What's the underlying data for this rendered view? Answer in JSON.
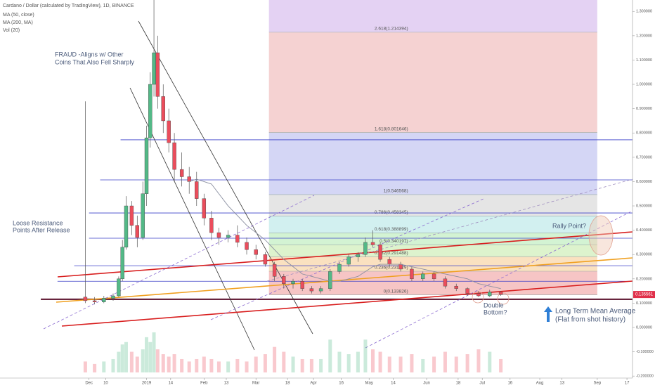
{
  "chart_data": {
    "type": "candlestick",
    "title": "Cardano / Dollar (calculated by TradingView), 1D, BINANCE",
    "indicators": [
      "MA (50, close)",
      "MA (200, MA)",
      "Vol (20)"
    ],
    "x": [
      -2,
      3,
      8,
      13,
      16,
      18,
      20,
      23,
      26,
      29,
      31,
      33,
      35,
      37,
      40,
      43,
      46,
      50,
      54,
      58,
      62,
      66,
      70,
      75,
      80,
      85,
      90,
      95,
      100,
      105,
      110,
      115,
      120,
      125,
      130,
      135,
      140,
      145,
      149,
      153,
      157,
      162,
      168,
      174,
      180,
      186,
      192,
      198,
      204,
      210,
      216,
      222
    ],
    "open": [
      0.125,
      0.11,
      0.105,
      0.12,
      0.13,
      0.2,
      0.33,
      0.5,
      0.42,
      0.37,
      0.55,
      0.78,
      1.0,
      1.13,
      0.95,
      0.85,
      0.76,
      0.65,
      0.62,
      0.6,
      0.53,
      0.45,
      0.39,
      0.37,
      0.38,
      0.35,
      0.32,
      0.3,
      0.26,
      0.21,
      0.18,
      0.19,
      0.16,
      0.15,
      0.16,
      0.23,
      0.26,
      0.29,
      0.3,
      0.35,
      0.34,
      0.28,
      0.26,
      0.24,
      0.2,
      0.22,
      0.2,
      0.17,
      0.16,
      0.14,
      0.13,
      0.145
    ],
    "high": [
      0.93,
      0.125,
      0.13,
      0.14,
      0.21,
      0.36,
      0.54,
      0.52,
      0.46,
      0.6,
      0.83,
      1.05,
      1.35,
      1.2,
      1.0,
      0.9,
      0.8,
      0.72,
      0.66,
      0.64,
      0.55,
      0.48,
      0.41,
      0.4,
      0.42,
      0.37,
      0.34,
      0.31,
      0.27,
      0.22,
      0.2,
      0.2,
      0.17,
      0.17,
      0.24,
      0.27,
      0.3,
      0.31,
      0.37,
      0.4,
      0.35,
      0.29,
      0.27,
      0.25,
      0.23,
      0.23,
      0.21,
      0.18,
      0.165,
      0.15,
      0.155,
      0.15
    ],
    "low": [
      0.1,
      0.095,
      0.1,
      0.11,
      0.125,
      0.19,
      0.32,
      0.38,
      0.33,
      0.36,
      0.5,
      0.74,
      0.95,
      0.9,
      0.8,
      0.72,
      0.6,
      0.58,
      0.55,
      0.5,
      0.42,
      0.36,
      0.34,
      0.35,
      0.33,
      0.3,
      0.28,
      0.25,
      0.19,
      0.16,
      0.16,
      0.15,
      0.14,
      0.14,
      0.15,
      0.22,
      0.25,
      0.27,
      0.29,
      0.33,
      0.27,
      0.25,
      0.23,
      0.19,
      0.19,
      0.19,
      0.16,
      0.15,
      0.13,
      0.125,
      0.125,
      0.13
    ],
    "close": [
      0.11,
      0.105,
      0.12,
      0.13,
      0.2,
      0.33,
      0.5,
      0.42,
      0.37,
      0.55,
      0.78,
      1.0,
      1.13,
      0.95,
      0.85,
      0.76,
      0.65,
      0.62,
      0.6,
      0.53,
      0.45,
      0.39,
      0.37,
      0.38,
      0.35,
      0.32,
      0.3,
      0.26,
      0.21,
      0.18,
      0.19,
      0.16,
      0.15,
      0.16,
      0.23,
      0.26,
      0.29,
      0.3,
      0.35,
      0.34,
      0.28,
      0.26,
      0.24,
      0.2,
      0.22,
      0.2,
      0.17,
      0.16,
      0.14,
      0.13,
      0.145,
      0.136
    ],
    "volume": [
      -0.14,
      -0.15,
      -0.14,
      -0.13,
      -0.1,
      -0.07,
      -0.06,
      -0.1,
      -0.12,
      -0.09,
      -0.04,
      -0.06,
      -0.02,
      -0.09,
      -0.11,
      -0.12,
      -0.11,
      -0.13,
      -0.14,
      -0.13,
      -0.12,
      -0.13,
      -0.14,
      -0.14,
      -0.13,
      -0.14,
      -0.12,
      -0.11,
      -0.08,
      -0.1,
      -0.12,
      -0.13,
      -0.13,
      -0.13,
      -0.05,
      -0.1,
      -0.11,
      -0.1,
      -0.05,
      -0.09,
      -0.1,
      -0.12,
      -0.12,
      -0.11,
      -0.13,
      -0.12,
      -0.1,
      -0.12,
      -0.11,
      -0.09,
      -0.1,
      -0.13
    ],
    "ma50": [
      null,
      null,
      null,
      null,
      null,
      null,
      null,
      null,
      null,
      null,
      null,
      null,
      null,
      null,
      null,
      null,
      null,
      null,
      0.6,
      0.61,
      0.6,
      0.59,
      0.55,
      0.5,
      0.46,
      0.42,
      0.39,
      0.36,
      0.32,
      0.28,
      0.25,
      0.22,
      0.21,
      0.2,
      0.19,
      0.19,
      0.2,
      0.21,
      0.23,
      0.25,
      0.26,
      0.26,
      0.26,
      0.25,
      0.24,
      0.23,
      0.22,
      0.21,
      0.2,
      0.18,
      0.17,
      0.16
    ],
    "colors": {
      "up": "#53b987",
      "down": "#eb4d5c",
      "ma50": "#8a8fa0"
    },
    "fib": {
      "from": 97,
      "to": 274,
      "top": 1.347,
      "levels": [
        {
          "price": 0.133826,
          "label": "0(0.133826)",
          "color": "#f4b6b6"
        },
        {
          "price": 0.231229,
          "label": "0.236(0.231229)",
          "color": "#f9d9b0"
        },
        {
          "price": 0.291488,
          "label": "0.382(0.291488)",
          "color": "#d5f0c0"
        },
        {
          "price": 0.340197,
          "label": "0.5(0.340197)",
          "color": "#c8f0c8"
        },
        {
          "price": 0.388899,
          "label": "0.618(0.388899)",
          "color": "#c7ecec"
        },
        {
          "price": 0.458345,
          "label": "0.786(0.458345)",
          "color": "#dedede"
        },
        {
          "price": 0.546568,
          "label": "1(0.546568)",
          "color": "#c9ccf2"
        },
        {
          "price": 0.801646,
          "label": "1.618(0.801646)",
          "color": "#f2c7c7"
        },
        {
          "price": 1.214394,
          "label": "2.618(1.214394)",
          "color": "#ddc7f0"
        }
      ]
    },
    "hlines": [
      {
        "price": 0.772,
        "from": 17
      },
      {
        "price": 0.607,
        "from": 6
      },
      {
        "price": 0.471,
        "from": 0
      },
      {
        "price": 0.367,
        "from": 0
      },
      {
        "price": 0.254,
        "from": -8
      },
      {
        "price": 0.19,
        "from": -17
      }
    ],
    "support": {
      "price": 0.116,
      "from": -26
    },
    "last": {
      "price": 0.135561,
      "label": "0.135561"
    },
    "annotations": [
      "FRAUD -Aligns w/ Other",
      "Coins That Also Fell Sharply",
      "Loose Resistance",
      "Points After Release",
      "Rally Point?",
      "Double",
      "Bottom?",
      "Long Term Mean Average",
      "(Flat from shot history)"
    ],
    "xlim": [
      -48,
      293
    ],
    "ylim": [
      -0.185,
      1.347
    ],
    "xticks": [
      {
        "value": 0,
        "label": "Dec"
      },
      {
        "value": 9,
        "label": "10"
      },
      {
        "value": 31,
        "label": "2019"
      },
      {
        "value": 44,
        "label": "14"
      },
      {
        "value": 62,
        "label": "Feb"
      },
      {
        "value": 74,
        "label": "13"
      },
      {
        "value": 90,
        "label": "Mar"
      },
      {
        "value": 107,
        "label": "18"
      },
      {
        "value": 121,
        "label": "Apr"
      },
      {
        "value": 136,
        "label": "16"
      },
      {
        "value": 151,
        "label": "May"
      },
      {
        "value": 164,
        "label": "14"
      },
      {
        "value": 182,
        "label": "Jun"
      },
      {
        "value": 199,
        "label": "18"
      },
      {
        "value": 212,
        "label": "Jul"
      },
      {
        "value": 227,
        "label": "16"
      },
      {
        "value": 243,
        "label": "Aug"
      },
      {
        "value": 255,
        "label": "13"
      },
      {
        "value": 274,
        "label": "Sep"
      },
      {
        "value": 290,
        "label": "17"
      }
    ],
    "yticks": [
      {
        "value": 1.3,
        "label": "1.300000"
      },
      {
        "value": 1.2,
        "label": "1.200000"
      },
      {
        "value": 1.1,
        "label": "1.100000"
      },
      {
        "value": 1,
        "label": "1.000000"
      },
      {
        "value": 0.9,
        "label": "0.900000"
      },
      {
        "value": 0.8,
        "label": "0.800000"
      },
      {
        "value": 0.7,
        "label": "0.700000"
      },
      {
        "value": 0.6,
        "label": "0.600000"
      },
      {
        "value": 0.5,
        "label": "0.500000"
      },
      {
        "value": 0.4,
        "label": "0.400000"
      },
      {
        "value": 0.3,
        "label": "0.300000"
      },
      {
        "value": 0.2,
        "label": "0.200000"
      },
      {
        "value": 0.1,
        "label": "0.100000"
      },
      {
        "value": 0,
        "label": "0.000000"
      },
      {
        "value": -0.1,
        "label": "-0.100000"
      },
      {
        "value": -0.2,
        "label": "-0.200000"
      }
    ]
  }
}
